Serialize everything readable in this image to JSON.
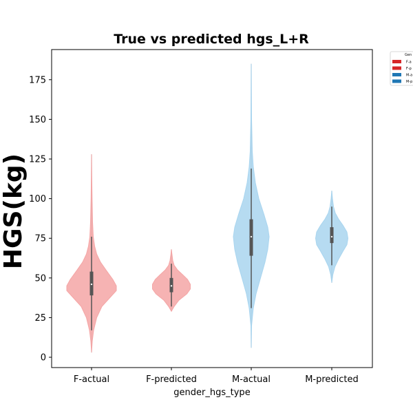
{
  "chart_data": {
    "type": "violin",
    "title": "True vs predicted hgs_L+R",
    "xlabel": "gender_hgs_type",
    "ylabel": "HGS(kg)",
    "ylim": [
      -6.5,
      194
    ],
    "yticks": [
      0,
      25,
      50,
      75,
      100,
      125,
      150,
      175
    ],
    "categories": [
      "F-actual",
      "F-predicted",
      "M-actual",
      "M-predicted"
    ],
    "colors": {
      "F-actual": "#f4a6a6",
      "F-predicted": "#f4a6a6",
      "M-actual": "#a9d5ef",
      "M-predicted": "#a9d5ef"
    },
    "series": [
      {
        "name": "F-actual",
        "min": 3,
        "max": 128,
        "q1": 39,
        "median": 46,
        "q3": 54,
        "whisker_low": 17,
        "whisker_high": 76,
        "density": [
          [
            3,
            0
          ],
          [
            10,
            0.02
          ],
          [
            17,
            0.06
          ],
          [
            25,
            0.15
          ],
          [
            32,
            0.3
          ],
          [
            38,
            0.55
          ],
          [
            42,
            0.72
          ],
          [
            45,
            0.72
          ],
          [
            49,
            0.62
          ],
          [
            55,
            0.42
          ],
          [
            60,
            0.26
          ],
          [
            65,
            0.15
          ],
          [
            70,
            0.09
          ],
          [
            76,
            0.05
          ],
          [
            85,
            0.03
          ],
          [
            100,
            0.015
          ],
          [
            115,
            0.007
          ],
          [
            128,
            0
          ]
        ]
      },
      {
        "name": "F-predicted",
        "min": 29,
        "max": 68,
        "q1": 41,
        "median": 45,
        "q3": 50,
        "whisker_low": 32,
        "whisker_high": 59,
        "density": [
          [
            29,
            0
          ],
          [
            32,
            0.08
          ],
          [
            36,
            0.22
          ],
          [
            40,
            0.45
          ],
          [
            43,
            0.55
          ],
          [
            46,
            0.55
          ],
          [
            49,
            0.47
          ],
          [
            52,
            0.33
          ],
          [
            55,
            0.18
          ],
          [
            58,
            0.08
          ],
          [
            61,
            0.04
          ],
          [
            65,
            0.015
          ],
          [
            68,
            0
          ]
        ]
      },
      {
        "name": "M-actual",
        "min": 6,
        "max": 185,
        "q1": 64,
        "median": 76,
        "q3": 87,
        "whisker_low": 31,
        "whisker_high": 119,
        "density": [
          [
            6,
            0
          ],
          [
            20,
            0.01
          ],
          [
            31,
            0.06
          ],
          [
            40,
            0.14
          ],
          [
            50,
            0.27
          ],
          [
            60,
            0.4
          ],
          [
            68,
            0.48
          ],
          [
            76,
            0.52
          ],
          [
            82,
            0.48
          ],
          [
            90,
            0.37
          ],
          [
            100,
            0.22
          ],
          [
            110,
            0.12
          ],
          [
            120,
            0.06
          ],
          [
            130,
            0.03
          ],
          [
            150,
            0.01
          ],
          [
            170,
            0.004
          ],
          [
            185,
            0
          ]
        ]
      },
      {
        "name": "M-predicted",
        "min": 47,
        "max": 105,
        "q1": 72,
        "median": 76,
        "q3": 82,
        "whisker_low": 58,
        "whisker_high": 95,
        "density": [
          [
            47,
            0
          ],
          [
            52,
            0.03
          ],
          [
            57,
            0.09
          ],
          [
            62,
            0.2
          ],
          [
            67,
            0.33
          ],
          [
            71,
            0.44
          ],
          [
            75,
            0.47
          ],
          [
            79,
            0.44
          ],
          [
            83,
            0.33
          ],
          [
            87,
            0.2
          ],
          [
            91,
            0.1
          ],
          [
            95,
            0.05
          ],
          [
            100,
            0.02
          ],
          [
            105,
            0
          ]
        ]
      }
    ],
    "legend": {
      "title": "Gen",
      "placement": "outside-top-right",
      "entries": [
        {
          "label": "F-a",
          "color": "#d62728"
        },
        {
          "label": "F-p",
          "color": "#d62728"
        },
        {
          "label": "M-a",
          "color": "#1f77b4"
        },
        {
          "label": "M-p",
          "color": "#1f77b4"
        }
      ]
    },
    "grid": false
  }
}
